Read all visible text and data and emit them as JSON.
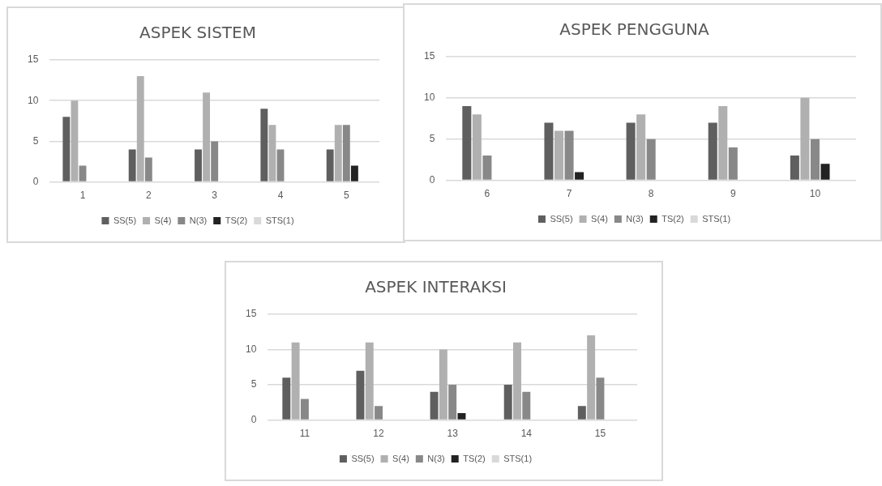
{
  "chart_data": [
    {
      "type": "bar",
      "title": "ASPEK SISTEM",
      "categories": [
        "1",
        "2",
        "3",
        "4",
        "5"
      ],
      "ylim": [
        0,
        15
      ],
      "yticks": [
        0,
        5,
        10,
        15
      ],
      "grid": "y",
      "legend": "bottom",
      "series": [
        {
          "name": "SS(5)",
          "color": "#5f5f5f",
          "values": [
            8,
            4,
            4,
            9,
            4
          ]
        },
        {
          "name": "S(4)",
          "color": "#b0b0b0",
          "values": [
            10,
            13,
            11,
            7,
            7
          ]
        },
        {
          "name": "N(3)",
          "color": "#888888",
          "values": [
            2,
            3,
            5,
            4,
            7
          ]
        },
        {
          "name": "TS(2)",
          "color": "#222222",
          "values": [
            0,
            0,
            0,
            0,
            2
          ]
        },
        {
          "name": "STS(1)",
          "color": "#d9d9d9",
          "values": [
            0,
            0,
            0,
            0,
            0
          ]
        }
      ]
    },
    {
      "type": "bar",
      "title": "ASPEK PENGGUNA",
      "categories": [
        "6",
        "7",
        "8",
        "9",
        "10"
      ],
      "ylim": [
        0,
        15
      ],
      "yticks": [
        0,
        5,
        10,
        15
      ],
      "grid": "y",
      "legend": "bottom",
      "series": [
        {
          "name": "SS(5)",
          "color": "#5f5f5f",
          "values": [
            9,
            7,
            7,
            7,
            3
          ]
        },
        {
          "name": "S(4)",
          "color": "#b0b0b0",
          "values": [
            8,
            6,
            8,
            9,
            10
          ]
        },
        {
          "name": "N(3)",
          "color": "#888888",
          "values": [
            3,
            6,
            5,
            4,
            5
          ]
        },
        {
          "name": "TS(2)",
          "color": "#222222",
          "values": [
            0,
            1,
            0,
            0,
            2
          ]
        },
        {
          "name": "STS(1)",
          "color": "#d9d9d9",
          "values": [
            0,
            0,
            0,
            0,
            0
          ]
        }
      ]
    },
    {
      "type": "bar",
      "title": "ASPEK INTERAKSI",
      "categories": [
        "11",
        "12",
        "13",
        "14",
        "15"
      ],
      "ylim": [
        0,
        15
      ],
      "yticks": [
        0,
        5,
        10,
        15
      ],
      "grid": "y",
      "legend": "bottom",
      "series": [
        {
          "name": "SS(5)",
          "color": "#5f5f5f",
          "values": [
            6,
            7,
            4,
            5,
            2
          ]
        },
        {
          "name": "S(4)",
          "color": "#b0b0b0",
          "values": [
            11,
            11,
            10,
            11,
            12
          ]
        },
        {
          "name": "N(3)",
          "color": "#888888",
          "values": [
            3,
            2,
            5,
            4,
            6
          ]
        },
        {
          "name": "TS(2)",
          "color": "#222222",
          "values": [
            0,
            0,
            1,
            0,
            0
          ]
        },
        {
          "name": "STS(1)",
          "color": "#d9d9d9",
          "values": [
            0,
            0,
            0,
            0,
            0
          ]
        }
      ]
    }
  ]
}
